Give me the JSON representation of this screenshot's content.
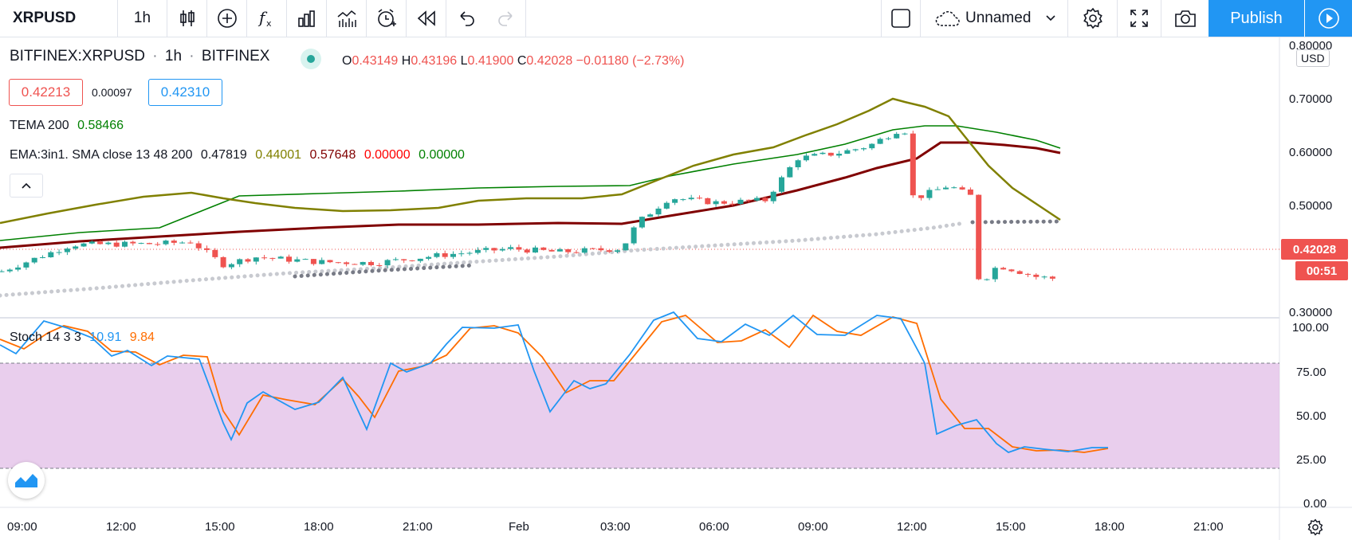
{
  "toolbar": {
    "symbol": "XRPUSD",
    "interval": "1h",
    "layout_name": "Unnamed",
    "publish_label": "Publish"
  },
  "legend": {
    "title": "BITFINEX:XRPUSD",
    "sep1": "·",
    "interval": "1h",
    "sep2": "·",
    "exchange": "BITFINEX",
    "o_label": "O",
    "o": "0.43149",
    "h_label": "H",
    "h": "0.43196",
    "l_label": "L",
    "l": "0.41900",
    "c_label": "C",
    "c": "0.42028",
    "change": "−0.01180 (−2.73%)",
    "bid": "0.42213",
    "spread": "0.00097",
    "ask": "0.42310",
    "tema_name": "TEMA 200",
    "tema_value": "0.58466",
    "ema_name": "EMA:3in1. SMA close 13 48 200",
    "ema_v1": "0.47819",
    "ema_v2": "0.44001",
    "ema_v3": "0.57648",
    "ema_v4": "0.00000",
    "ema_v5": "0.00000"
  },
  "stoch": {
    "name": "Stoch 14 3 3",
    "k": "10.91",
    "d": "9.84"
  },
  "price_axis": {
    "currency": "USD",
    "ticks": [
      "0.80000",
      "0.70000",
      "0.60000",
      "0.50000",
      "0.30000"
    ],
    "current_price": "0.42028",
    "countdown": "00:51"
  },
  "stoch_axis": {
    "ticks": [
      "100.00",
      "75.00",
      "50.00",
      "25.00",
      "0.00"
    ]
  },
  "time_axis": {
    "ticks": [
      "09:00",
      "12:00",
      "15:00",
      "18:00",
      "21:00",
      "Feb",
      "03:00",
      "06:00",
      "09:00",
      "12:00",
      "15:00",
      "18:00",
      "21:00"
    ]
  },
  "colors": {
    "up": "#26a69a",
    "down": "#ef5350",
    "accent": "#2196f3",
    "stoch_k": "#2196f3",
    "stoch_d": "#ff6d00",
    "stoch_band": "#e1bee7",
    "sma13": "#808000",
    "sma48": "#008000",
    "sma200": "#800000",
    "tema": "#787b86"
  },
  "icons": [
    "candles-icon",
    "add-indicator-icon",
    "fx-icon",
    "compare-icon",
    "bar-replay-icon",
    "alert-icon",
    "rewind-icon",
    "undo-icon",
    "redo-icon",
    "square-icon",
    "cloud-icon",
    "settings-icon",
    "fullscreen-icon",
    "camera-icon",
    "play-icon",
    "collapse-icon",
    "tradingview-logo-icon",
    "gear-icon"
  ]
}
